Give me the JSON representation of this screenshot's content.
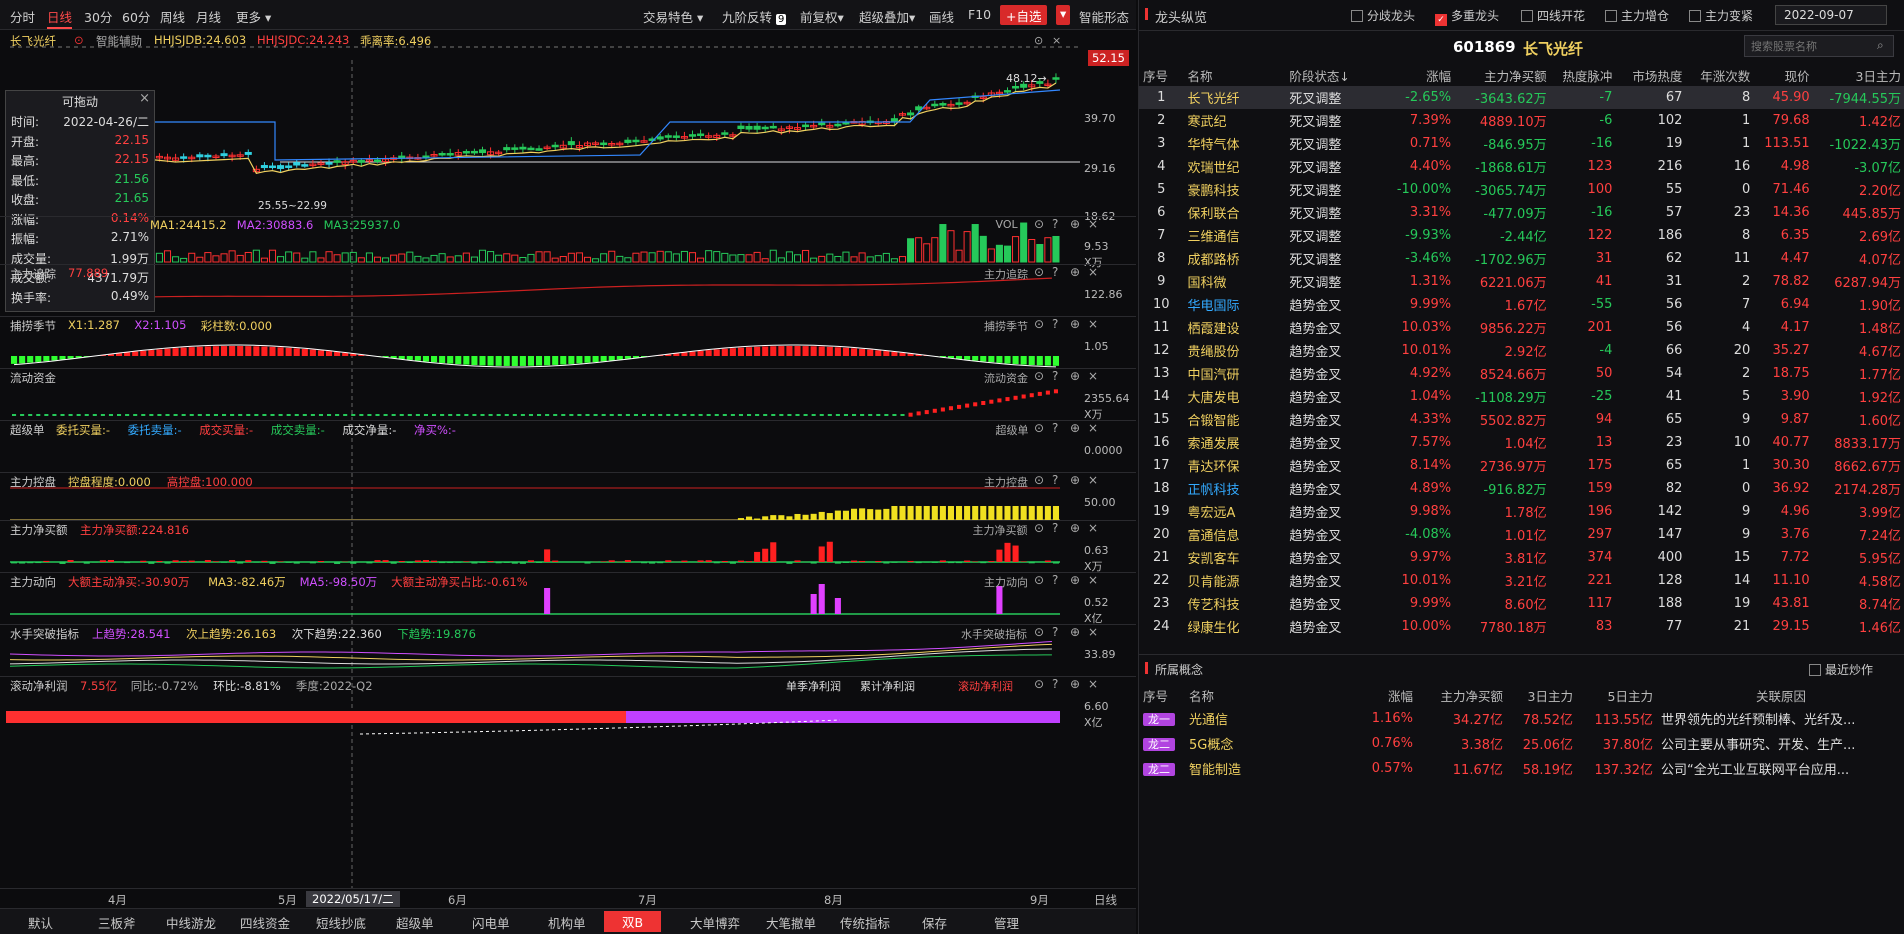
{
  "toolbar": {
    "left_items": [
      "分时",
      "日线",
      "30分",
      "60分",
      "周线",
      "月线",
      "更多"
    ],
    "active": "日线",
    "right_items": [
      "交易特色",
      "九阶反转",
      "前复权",
      "超级叠加",
      "画线",
      "F10"
    ],
    "add_favorite": "+自选",
    "smart_shape": "智能形态",
    "nine_badge": "9"
  },
  "stock_header": {
    "name": "长飞光纤",
    "assist": "智能辅助",
    "hhjsjdb": "HHJSJDB:24.603",
    "hhjsjdc": "HHJSJDC:24.243",
    "deviation": "乖离率:6.496",
    "price_tag": "52.15",
    "peak_label": "48.12→",
    "low_label": "25.55~22.99"
  },
  "tooltip": {
    "title": "可拖动",
    "rows": [
      {
        "k": "时间:",
        "v": "2022-04-26/二",
        "c": "wh"
      },
      {
        "k": "开盘:",
        "v": "22.15",
        "c": "up"
      },
      {
        "k": "最高:",
        "v": "22.15",
        "c": "up"
      },
      {
        "k": "最低:",
        "v": "21.56",
        "c": "dn"
      },
      {
        "k": "收盘:",
        "v": "21.65",
        "c": "dn"
      },
      {
        "k": "涨幅:",
        "v": "0.14%",
        "c": "up"
      },
      {
        "k": "振幅:",
        "v": "2.71%",
        "c": "wh"
      },
      {
        "k": "成交量:",
        "v": "1.99万",
        "c": "wh"
      },
      {
        "k": "成交额:",
        "v": "4371.79万",
        "c": "wh"
      },
      {
        "k": "换手率:",
        "v": "0.49%",
        "c": "wh"
      }
    ]
  },
  "price_axis": [
    "39.70",
    "29.16",
    "18.62"
  ],
  "panels": [
    {
      "id": "vol",
      "label": "",
      "fields": [
        {
          "t": "MA1:24415.2",
          "c": "#f0d060"
        },
        {
          "t": "MA2:30883.6",
          "c": "#d050ff"
        },
        {
          "t": "MA3:25937.0",
          "c": "#26c95a"
        }
      ],
      "right": "VOL",
      "axis": "9.53",
      "unit": "X万"
    },
    {
      "id": "zlzz",
      "label": "主力追踪",
      "fields": [
        {
          "t": "77.889",
          "c": "#ff4040"
        }
      ],
      "right": "主力追踪",
      "axis": "122.86",
      "unit": ""
    },
    {
      "id": "blj",
      "label": "捕捞季节",
      "fields": [
        {
          "t": "X1:1.287",
          "c": "#f0d060"
        },
        {
          "t": "X2:1.105",
          "c": "#d050ff"
        },
        {
          "t": "彩柱数:0.000",
          "c": "#f0d060"
        }
      ],
      "right": "捕捞季节",
      "axis": "1.05",
      "unit": ""
    },
    {
      "id": "ldzj",
      "label": "流动资金",
      "fields": [],
      "right": "流动资金",
      "axis": "2355.64",
      "unit": "X万"
    },
    {
      "id": "cjd",
      "label": "超级单",
      "fields": [
        {
          "t": "委托买量:-",
          "c": "#f0d060"
        },
        {
          "t": "委托卖量:-",
          "c": "#33aaff"
        },
        {
          "t": "成交买量:-",
          "c": "#ff4040"
        },
        {
          "t": "成交卖量:-",
          "c": "#26c95a"
        },
        {
          "t": "成交净量:-",
          "c": "#ddd"
        },
        {
          "t": "净买%:-",
          "c": "#d050ff"
        }
      ],
      "right": "超级单",
      "axis": "0.0000",
      "unit": ""
    },
    {
      "id": "zlkp",
      "label": "主力控盘",
      "fields": [
        {
          "t": "控盘程度:0.000",
          "c": "#f0d060"
        },
        {
          "t": "高控盘:100.000",
          "c": "#ff4040"
        }
      ],
      "right": "主力控盘",
      "axis": "50.00",
      "unit": ""
    },
    {
      "id": "zljme",
      "label": "主力净买额",
      "fields": [
        {
          "t": "主力净买额:224.816",
          "c": "#ff4040"
        }
      ],
      "right": "主力净买额",
      "axis": "0.63",
      "unit": "X万"
    },
    {
      "id": "zldx",
      "label": "主力动向",
      "fields": [
        {
          "t": "大额主动净买:-30.90万",
          "c": "#ff4040"
        },
        {
          "t": "MA3:-82.46万",
          "c": "#f0d060"
        },
        {
          "t": "MA5:-98.50万",
          "c": "#d050ff"
        },
        {
          "t": "大额主动净买占比:-0.61%",
          "c": "#ff4040"
        }
      ],
      "right": "主力动向",
      "axis": "0.52",
      "unit": "X亿"
    },
    {
      "id": "sstp",
      "label": "水手突破指标",
      "fields": [
        {
          "t": "上趋势:28.541",
          "c": "#d050ff"
        },
        {
          "t": "次上趋势:26.163",
          "c": "#f0d060"
        },
        {
          "t": "次下趋势:22.360",
          "c": "#ddd"
        },
        {
          "t": "下趋势:19.876",
          "c": "#26c95a"
        }
      ],
      "right": "水手突破指标",
      "axis": "33.89",
      "unit": ""
    },
    {
      "id": "gdjlr",
      "label": "滚动净利润",
      "fields": [
        {
          "t": "7.55亿",
          "c": "#ff4040"
        },
        {
          "t": "同比:-0.72%",
          "c": "#aaa"
        },
        {
          "t": "环比:-8.81%",
          "c": "#ddd"
        },
        {
          "t": "季度:2022-Q2",
          "c": "#aaa"
        }
      ],
      "right_tabs": [
        "单季净利润",
        "累计净利润",
        "滚动净利润"
      ],
      "axis": "6.60",
      "unit": "X亿"
    }
  ],
  "time_axis": {
    "labels": [
      "4月",
      "5月",
      "6月",
      "7月",
      "8月",
      "9月"
    ],
    "cursor_date": "2022/05/17/二",
    "mode": "日线"
  },
  "bottom_tabs": [
    "默认",
    "三板斧",
    "中线游龙",
    "四线资金",
    "短线抄底",
    "超级单",
    "闪电单",
    "机构单",
    "双B",
    "大单博弈",
    "大笔撤单",
    "传统指标",
    "保存",
    "管理"
  ],
  "bottom_active": "双B",
  "right_panel": {
    "title": "龙头纵览",
    "filters": [
      {
        "label": "分歧龙头",
        "on": false
      },
      {
        "label": "多重龙头",
        "on": true
      },
      {
        "label": "四线开花",
        "on": false
      },
      {
        "label": "主力增仓",
        "on": false
      },
      {
        "label": "主力变紧",
        "on": false
      }
    ],
    "date": "2022-09-07",
    "code": "601869",
    "name": "长飞光纤",
    "search_placeholder": "搜索股票名称",
    "columns": [
      "序号",
      "名称",
      "阶段状态↓",
      "涨幅",
      "主力净买额",
      "热度脉冲",
      "市场热度",
      "年涨次数",
      "现价",
      "3日主力"
    ],
    "rows": [
      [
        "1",
        "长飞光纤",
        "死叉调整",
        "-2.65%",
        "-3643.62万",
        "-7",
        "67",
        "8",
        "45.90",
        "-7944.55万"
      ],
      [
        "2",
        "寒武纪",
        "死叉调整",
        "7.39%",
        "4889.10万",
        "-6",
        "102",
        "1",
        "79.68",
        "1.42亿"
      ],
      [
        "3",
        "华特气体",
        "死叉调整",
        "0.71%",
        "-846.95万",
        "-16",
        "19",
        "1",
        "113.51",
        "-1022.43万"
      ],
      [
        "4",
        "欢瑞世纪",
        "死叉调整",
        "4.40%",
        "-1868.61万",
        "123",
        "216",
        "16",
        "4.98",
        "-3.07亿"
      ],
      [
        "5",
        "豪鹏科技",
        "死叉调整",
        "-10.00%",
        "-3065.74万",
        "100",
        "55",
        "0",
        "71.46",
        "2.20亿"
      ],
      [
        "6",
        "保利联合",
        "死叉调整",
        "3.31%",
        "-477.09万",
        "-16",
        "57",
        "23",
        "14.36",
        "445.85万"
      ],
      [
        "7",
        "三维通信",
        "死叉调整",
        "-9.93%",
        "-2.44亿",
        "122",
        "186",
        "8",
        "6.35",
        "2.69亿"
      ],
      [
        "8",
        "成都路桥",
        "死叉调整",
        "-3.46%",
        "-1702.96万",
        "31",
        "62",
        "11",
        "4.47",
        "4.07亿"
      ],
      [
        "9",
        "国科微",
        "死叉调整",
        "1.31%",
        "6221.06万",
        "41",
        "31",
        "2",
        "78.82",
        "6287.94万"
      ],
      [
        "10",
        "华电国际",
        "趋势金叉",
        "9.99%",
        "1.67亿",
        "-55",
        "56",
        "7",
        "6.94",
        "1.90亿"
      ],
      [
        "11",
        "栖霞建设",
        "趋势金叉",
        "10.03%",
        "9856.22万",
        "201",
        "56",
        "4",
        "4.17",
        "1.48亿"
      ],
      [
        "12",
        "贵绳股份",
        "趋势金叉",
        "10.01%",
        "2.92亿",
        "-4",
        "66",
        "20",
        "35.27",
        "4.67亿"
      ],
      [
        "13",
        "中国汽研",
        "趋势金叉",
        "4.92%",
        "8524.66万",
        "50",
        "54",
        "2",
        "18.75",
        "1.77亿"
      ],
      [
        "14",
        "大唐发电",
        "趋势金叉",
        "1.04%",
        "-1108.29万",
        "-25",
        "41",
        "5",
        "3.90",
        "1.92亿"
      ],
      [
        "15",
        "合锻智能",
        "趋势金叉",
        "4.33%",
        "5502.82万",
        "94",
        "65",
        "9",
        "9.87",
        "1.60亿"
      ],
      [
        "16",
        "索通发展",
        "趋势金叉",
        "7.57%",
        "1.04亿",
        "13",
        "23",
        "10",
        "40.77",
        "8833.17万"
      ],
      [
        "17",
        "青达环保",
        "趋势金叉",
        "8.14%",
        "2736.97万",
        "175",
        "65",
        "1",
        "30.30",
        "8662.67万"
      ],
      [
        "18",
        "正帆科技",
        "趋势金叉",
        "4.89%",
        "-916.82万",
        "159",
        "82",
        "0",
        "36.92",
        "2174.28万"
      ],
      [
        "19",
        "粤宏远A",
        "趋势金叉",
        "9.98%",
        "1.78亿",
        "196",
        "142",
        "9",
        "4.96",
        "3.99亿"
      ],
      [
        "20",
        "富通信息",
        "趋势金叉",
        "-4.08%",
        "1.01亿",
        "297",
        "147",
        "9",
        "3.76",
        "7.24亿"
      ],
      [
        "21",
        "安凯客车",
        "趋势金叉",
        "9.97%",
        "3.81亿",
        "374",
        "400",
        "15",
        "7.72",
        "5.95亿"
      ],
      [
        "22",
        "贝肯能源",
        "趋势金叉",
        "10.01%",
        "3.21亿",
        "221",
        "128",
        "14",
        "11.10",
        "4.58亿"
      ],
      [
        "23",
        "传艺科技",
        "趋势金叉",
        "9.99%",
        "8.60亿",
        "117",
        "188",
        "19",
        "43.81",
        "8.74亿"
      ],
      [
        "24",
        "绿康生化",
        "趋势金叉",
        "10.00%",
        "7780.18万",
        "83",
        "77",
        "21",
        "29.15",
        "1.46亿"
      ]
    ],
    "concept_title": "所属概念",
    "recent_label": "最近炒作",
    "concept_columns": [
      "序号",
      "名称",
      "涨幅",
      "主力净买额",
      "3日主力",
      "5日主力",
      "关联原因"
    ],
    "concepts": [
      [
        "龙一",
        "光通信",
        "1.16%",
        "34.27亿",
        "78.52亿",
        "113.55亿",
        "世界领先的光纤预制棒、光纤及..."
      ],
      [
        "龙二",
        "5G概念",
        "0.76%",
        "3.38亿",
        "25.06亿",
        "37.80亿",
        "公司主要从事研究、开发、生产..."
      ],
      [
        "龙二",
        "智能制造",
        "0.57%",
        "11.67亿",
        "58.19亿",
        "137.32亿",
        "公司“全光工业互联网平台应用..."
      ]
    ]
  }
}
